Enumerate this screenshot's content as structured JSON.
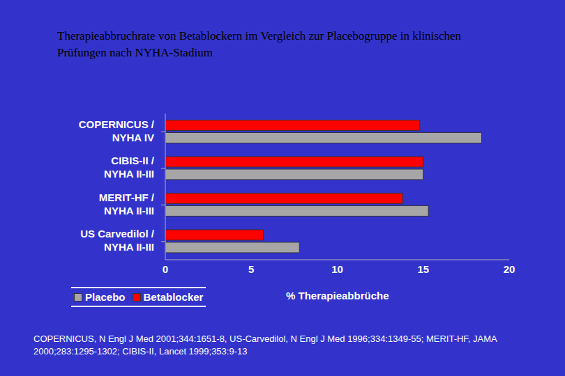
{
  "chart_data": {
    "type": "bar",
    "orientation": "horizontal",
    "title": "Therapieabbruchrate von Betablockern im Vergleich zur Placebogruppe in klinischen Prüfungen nach NYHA-Stadium",
    "categories": [
      "COPERNICUS / NYHA IV",
      "CIBIS-II / NYHA II-III",
      "MERIT-HF / NYHA II-III",
      "US Carvedilol / NYHA II-III"
    ],
    "series": [
      {
        "name": "Placebo",
        "color": "#a6a6a6",
        "values": [
          18.4,
          15,
          15.3,
          7.8
        ]
      },
      {
        "name": "Betablocker",
        "color": "#ff0000",
        "values": [
          14.8,
          15,
          13.8,
          5.7
        ]
      }
    ],
    "xlabel": "% Therapieabbrüche",
    "xlim": [
      0,
      20
    ],
    "xticks": [
      0,
      5,
      10,
      15,
      20
    ],
    "grid": false,
    "legend": "lower left",
    "source": "COPERNICUS, N Engl J Med 2001;344:1651-8, US-Carvedilol, N Engl J Med 1996;334:1349-55; MERIT-HF, JAMA 2000;283:1295-1302; CIBIS-II, Lancet 1999;353:9-13"
  }
}
